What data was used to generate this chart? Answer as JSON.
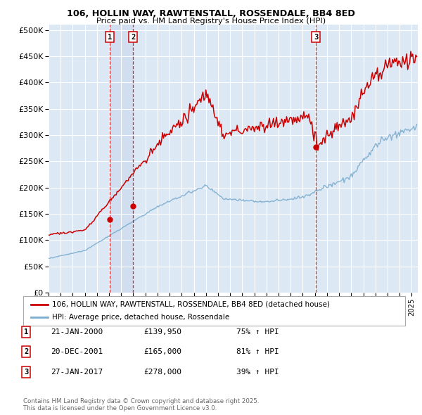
{
  "title1": "106, HOLLIN WAY, RAWTENSTALL, ROSSENDALE, BB4 8ED",
  "title2": "Price paid vs. HM Land Registry's House Price Index (HPI)",
  "xlim_start": 1995.0,
  "xlim_end": 2025.5,
  "ylim_min": 0,
  "ylim_max": 510000,
  "yticks": [
    0,
    50000,
    100000,
    150000,
    200000,
    250000,
    300000,
    350000,
    400000,
    450000,
    500000
  ],
  "ytick_labels": [
    "£0",
    "£50K",
    "£100K",
    "£150K",
    "£200K",
    "£250K",
    "£300K",
    "£350K",
    "£400K",
    "£450K",
    "£500K"
  ],
  "sale_color": "#cc0000",
  "hpi_color": "#7aadcf",
  "vline_color": "#cc0000",
  "shade_color": "#dde8f5",
  "purchases": [
    {
      "id": 1,
      "date_num": 2000.056,
      "price": 139950,
      "label": "1"
    },
    {
      "id": 2,
      "date_num": 2001.972,
      "price": 165000,
      "label": "2"
    },
    {
      "id": 3,
      "date_num": 2017.074,
      "price": 278000,
      "label": "3"
    }
  ],
  "legend_sale_label": "106, HOLLIN WAY, RAWTENSTALL, ROSSENDALE, BB4 8ED (detached house)",
  "legend_hpi_label": "HPI: Average price, detached house, Rossendale",
  "table_rows": [
    {
      "num": "1",
      "date": "21-JAN-2000",
      "price": "£139,950",
      "pct": "75% ↑ HPI"
    },
    {
      "num": "2",
      "date": "20-DEC-2001",
      "price": "£165,000",
      "pct": "81% ↑ HPI"
    },
    {
      "num": "3",
      "date": "27-JAN-2017",
      "price": "£278,000",
      "pct": "39% ↑ HPI"
    }
  ],
  "footnote": "Contains HM Land Registry data © Crown copyright and database right 2025.\nThis data is licensed under the Open Government Licence v3.0.",
  "background_color": "#dde8f5"
}
